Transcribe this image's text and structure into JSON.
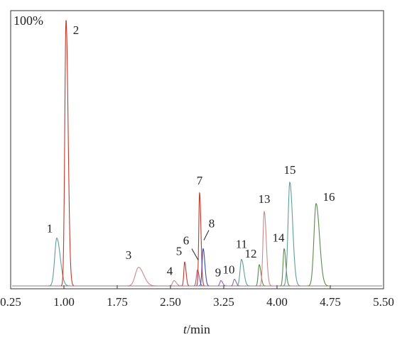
{
  "chart_data": {
    "type": "line",
    "title": "",
    "scale_label": "100%",
    "xlabel_italic": "t",
    "xlabel_unit": "/min",
    "xlim": [
      0.25,
      5.5
    ],
    "ylim": [
      0,
      100
    ],
    "x_ticks": [
      "0.25",
      "1.00",
      "1.75",
      "2.50",
      "3.25",
      "4.00",
      "4.75",
      "5.50"
    ],
    "colors": {
      "red": "#c0392b",
      "pink": "#c98a8a",
      "teal": "#5f9e96",
      "green": "#5a8a4e",
      "purple": "#8a6aa0",
      "blue": "#3a4ab5",
      "axis": "#333333"
    },
    "peaks": [
      {
        "label": "1",
        "rt": 0.9,
        "height": 18,
        "width": 0.03,
        "color": "teal"
      },
      {
        "label": "2",
        "rt": 1.03,
        "height": 100,
        "width": 0.018,
        "color": "red"
      },
      {
        "label": "3",
        "rt": 2.05,
        "height": 7,
        "width": 0.045,
        "color": "pink"
      },
      {
        "label": "4",
        "rt": 2.55,
        "height": 2,
        "width": 0.02,
        "color": "pink"
      },
      {
        "label": "5",
        "rt": 2.7,
        "height": 9,
        "width": 0.012,
        "color": "red"
      },
      {
        "label": "6",
        "rt": 2.88,
        "height": 6,
        "width": 0.015,
        "color": "purple"
      },
      {
        "label": "7",
        "rt": 2.91,
        "height": 35,
        "width": 0.012,
        "color": "red"
      },
      {
        "label": "8",
        "rt": 2.96,
        "height": 14,
        "width": 0.015,
        "color": "blue"
      },
      {
        "label": "9",
        "rt": 3.21,
        "height": 2,
        "width": 0.015,
        "color": "purple"
      },
      {
        "label": "10",
        "rt": 3.4,
        "height": 2.5,
        "width": 0.015,
        "color": "purple"
      },
      {
        "label": "11",
        "rt": 3.5,
        "height": 10,
        "width": 0.02,
        "color": "teal"
      },
      {
        "label": "12",
        "rt": 3.75,
        "height": 8,
        "width": 0.015,
        "color": "green"
      },
      {
        "label": "13",
        "rt": 3.82,
        "height": 28,
        "width": 0.018,
        "color": "pink"
      },
      {
        "label": "14",
        "rt": 4.1,
        "height": 14,
        "width": 0.015,
        "color": "green"
      },
      {
        "label": "15",
        "rt": 4.18,
        "height": 39,
        "width": 0.025,
        "color": "teal"
      },
      {
        "label": "16",
        "rt": 4.55,
        "height": 31,
        "width": 0.03,
        "color": "green"
      }
    ]
  }
}
